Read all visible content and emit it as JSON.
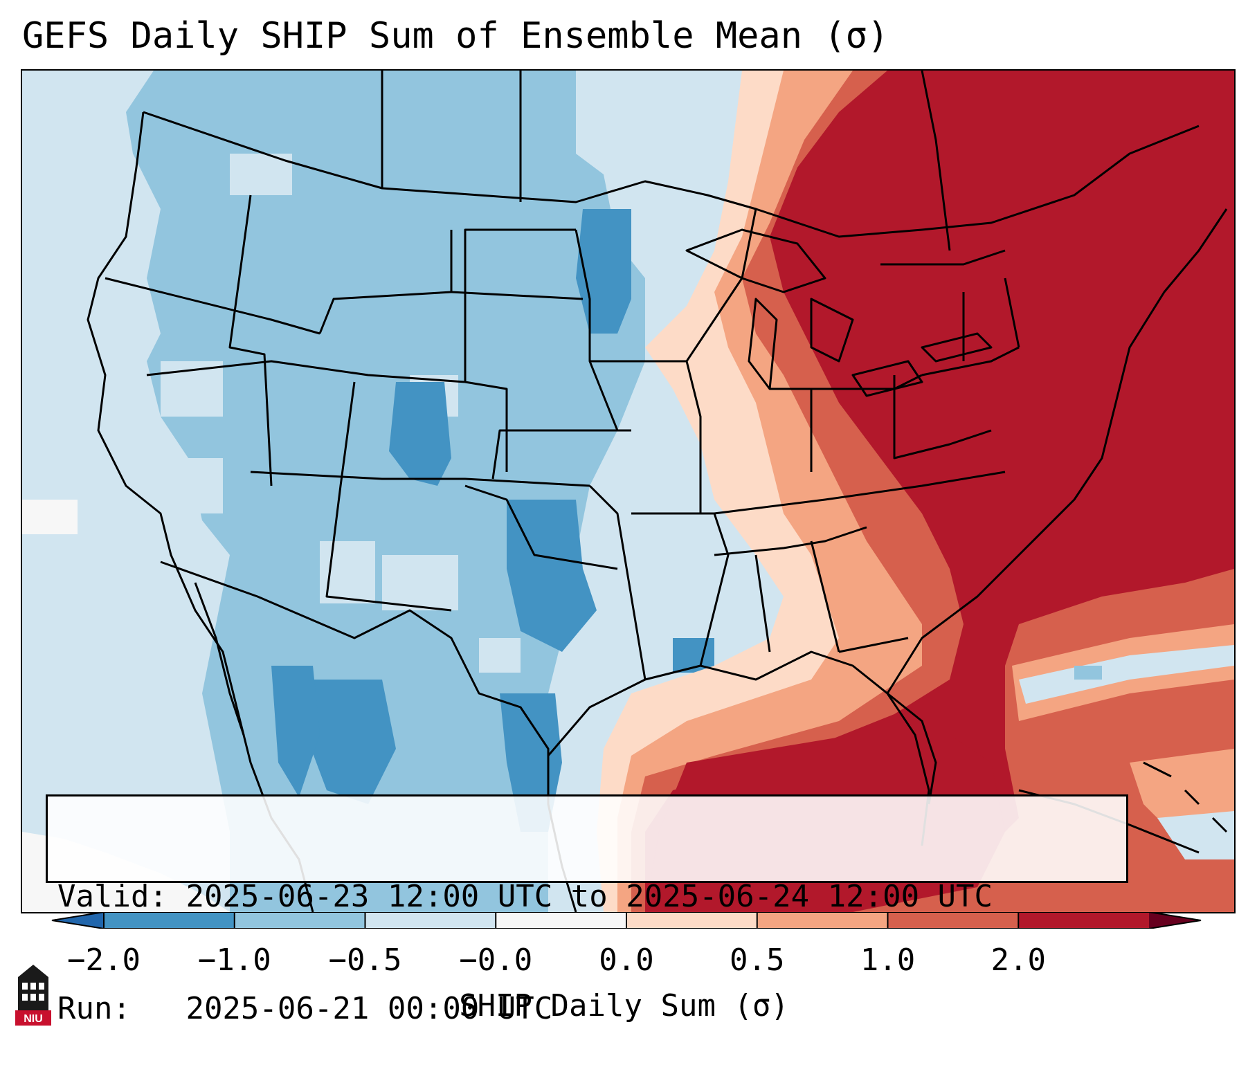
{
  "title": "GEFS Daily SHIP Sum of Ensemble Mean (σ)",
  "info": {
    "valid_label": "Valid:",
    "valid_value": "2025-06-23 12:00 UTC to 2025-06-24 12:00 UTC",
    "run_label": "Run:",
    "run_value": "2025-06-21 00:00 UTC"
  },
  "colorbar": {
    "label": "SHIP Daily Sum (σ)",
    "ticks": [
      "−2.0",
      "−1.0",
      "−0.5",
      "−0.0",
      "0.0",
      "0.5",
      "1.0",
      "2.0"
    ],
    "colors": [
      "#4393c3",
      "#92c5de",
      "#d1e5f0",
      "#f7f7f7",
      "#fddbc7",
      "#f4a582",
      "#d6604d",
      "#b2182b"
    ],
    "extend_low_color": "#2166ac",
    "extend_high_color": "#67001f"
  },
  "logo": {
    "text": "NIU",
    "icon": "niu-logo-icon"
  }
}
